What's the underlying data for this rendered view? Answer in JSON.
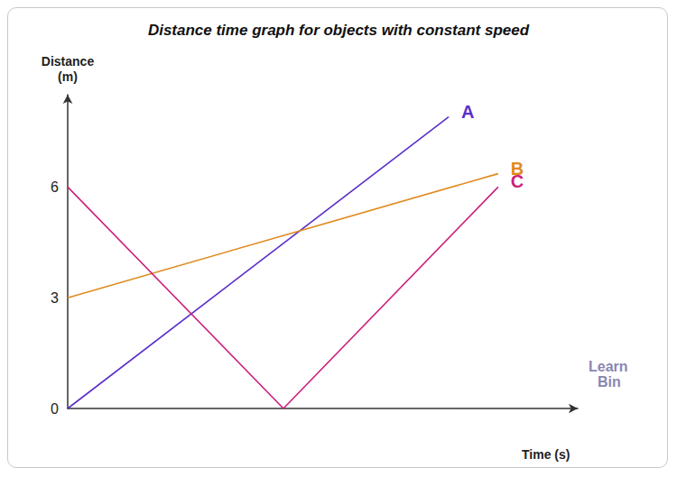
{
  "chart_data": {
    "type": "line",
    "title": "Distance time graph for objects with constant speed",
    "x_label": "Time (s)",
    "y_label": "Distance\n(m)",
    "xlim": [
      0,
      10
    ],
    "ylim": [
      0,
      8.5
    ],
    "yticks": [
      0,
      3,
      6
    ],
    "tick_labels": "y",
    "grid": false,
    "series": [
      {
        "name": "A",
        "color": "#5b2fc9",
        "x": [
          0,
          7.47
        ],
        "values": [
          0,
          7.9
        ]
      },
      {
        "name": "B",
        "color": "#e08a1e",
        "x": [
          0,
          8.44
        ],
        "values": [
          3,
          6.36
        ]
      },
      {
        "name": "C",
        "color": "#cc1f7a",
        "x": [
          0,
          4.23,
          8.44
        ],
        "values": [
          6,
          0,
          6
        ]
      }
    ],
    "watermark": [
      "Learn",
      "Bin"
    ]
  }
}
